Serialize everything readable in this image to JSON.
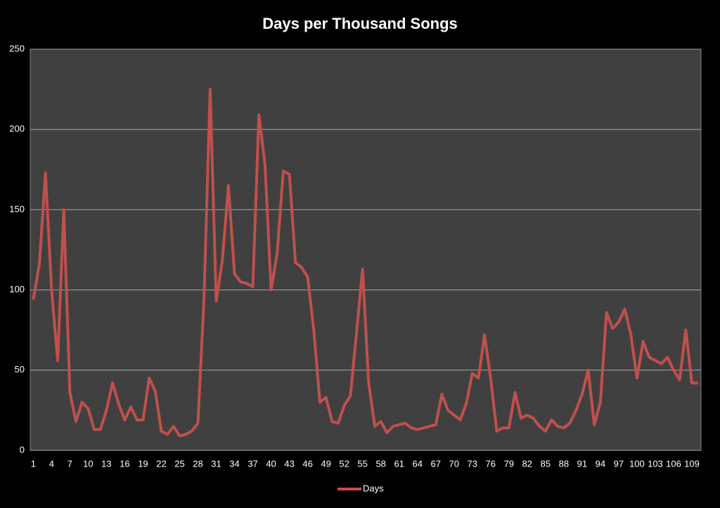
{
  "chart_data": {
    "type": "line",
    "title": "Days per Thousand Songs",
    "categories": [
      1,
      null,
      null,
      4,
      null,
      null,
      7,
      null,
      null,
      10,
      null,
      null,
      13,
      null,
      null,
      16,
      null,
      null,
      19,
      null,
      null,
      22,
      null,
      null,
      25,
      null,
      null,
      28,
      null,
      null,
      31,
      null,
      null,
      34,
      null,
      null,
      37,
      null,
      null,
      40,
      null,
      null,
      43,
      null,
      null,
      46,
      null,
      null,
      49,
      null,
      null,
      52,
      null,
      null,
      55,
      null,
      null,
      58,
      null,
      null,
      61,
      null,
      null,
      64,
      null,
      null,
      67,
      null,
      null,
      70,
      null,
      null,
      73,
      null,
      null,
      76,
      null,
      null,
      79,
      null,
      null,
      82,
      null,
      null,
      85,
      null,
      null,
      88,
      null,
      null,
      91,
      null,
      null,
      94,
      null,
      null,
      97,
      null,
      null,
      100,
      null,
      null,
      103,
      null,
      null,
      106,
      null,
      null,
      109,
      null
    ],
    "series": [
      {
        "name": "Days",
        "color": "#c0504d",
        "values": [
          94,
          116,
          173,
          100,
          56,
          150,
          36,
          18,
          30,
          26,
          13,
          13,
          25,
          42,
          29,
          19,
          27,
          19,
          19,
          45,
          37,
          12,
          10,
          15,
          9,
          10,
          12,
          17,
          95,
          225,
          93,
          118,
          165,
          110,
          105,
          104,
          102,
          209,
          178,
          100,
          123,
          174,
          172,
          117,
          114,
          108,
          75,
          30,
          33,
          18,
          17,
          28,
          34,
          73,
          113,
          42,
          15,
          18,
          11,
          15,
          16,
          17,
          14,
          13,
          14,
          15,
          16,
          35,
          25,
          22,
          19,
          29,
          48,
          45,
          72,
          45,
          12,
          14,
          14,
          36,
          20,
          22,
          20,
          15,
          12,
          19,
          15,
          14,
          17,
          25,
          35,
          50,
          16,
          30,
          86,
          76,
          80,
          88,
          72,
          45,
          68,
          58,
          56,
          54,
          58,
          50,
          44,
          75,
          42,
          42
        ]
      }
    ],
    "ylim": [
      0,
      250
    ],
    "yticks": [
      0,
      50,
      100,
      150,
      200,
      250
    ],
    "grid": true,
    "legend": "bottom"
  }
}
